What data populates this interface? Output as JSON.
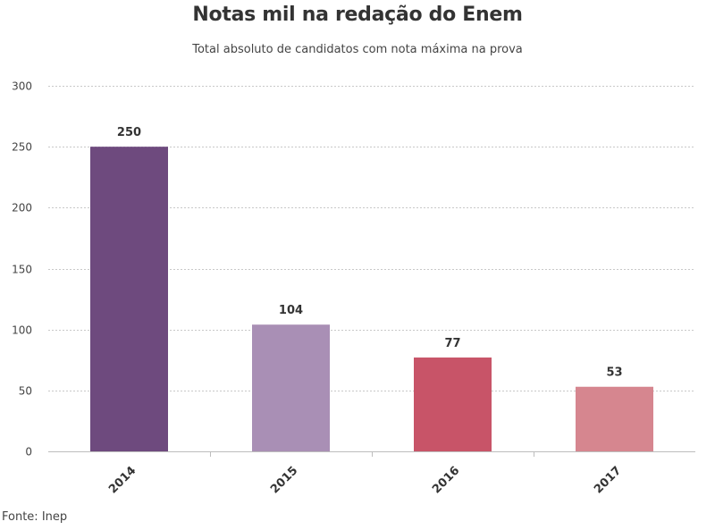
{
  "chart_data": {
    "type": "bar",
    "title": "Notas mil na redação do Enem",
    "subtitle": "Total absoluto de candidatos com nota máxima na prova",
    "categories": [
      "2014",
      "2015",
      "2016",
      "2017"
    ],
    "values": [
      250,
      104,
      77,
      53
    ],
    "data_labels": [
      "250",
      "104",
      "77",
      "53"
    ],
    "colors": [
      "#6e4a7e",
      "#a98fb5",
      "#c85468",
      "#d6868f"
    ],
    "ylim": [
      0,
      300
    ],
    "yticks": [
      0,
      50,
      100,
      150,
      200,
      250,
      300
    ],
    "ytick_labels": [
      "0",
      "50",
      "100",
      "150",
      "200",
      "250",
      "300"
    ],
    "grid": true,
    "xlabel": "",
    "ylabel": ""
  },
  "source": "Fonte: Inep"
}
